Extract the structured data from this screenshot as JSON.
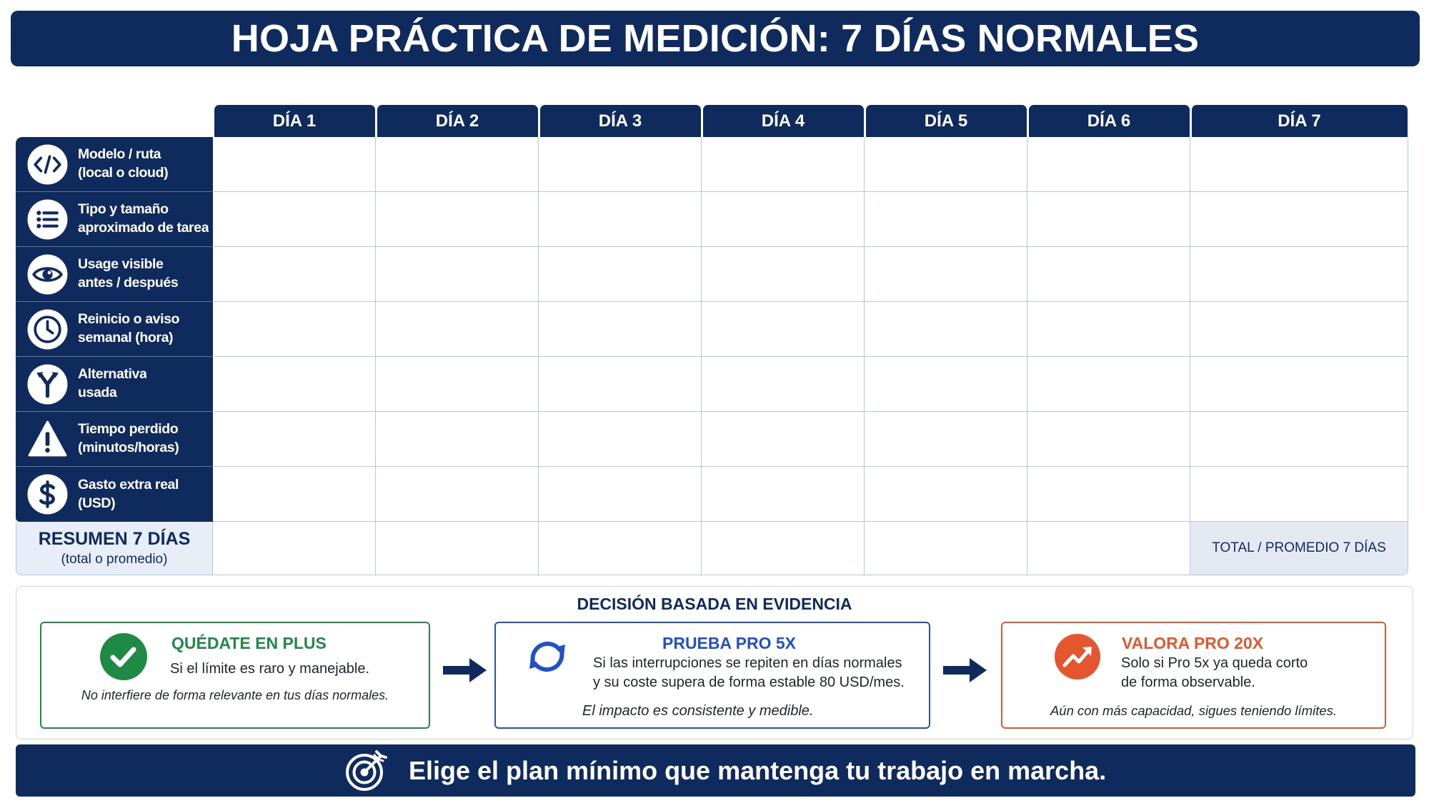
{
  "title": "HOJA PRÁCTICA DE MEDICIÓN: 7 DÍAS NORMALES",
  "colors": {
    "navy": "#0f2a5c",
    "green": "#1f8a45",
    "blue": "#1f52c9",
    "orange": "#e4572e",
    "grid": "#b9c5d8"
  },
  "table": {
    "days": [
      "DÍA 1",
      "DÍA 2",
      "DÍA 3",
      "DÍA 4",
      "DÍA 5",
      "DÍA 6",
      "DÍA 7"
    ],
    "rows": [
      {
        "icon": "code-icon",
        "lines": [
          "Modelo / ruta",
          "(local o cloud)"
        ]
      },
      {
        "icon": "list-icon",
        "lines": [
          "Tipo y tamaño",
          "aproximado de tarea"
        ]
      },
      {
        "icon": "eye-icon",
        "lines": [
          "Usage visible",
          "antes / después"
        ]
      },
      {
        "icon": "clock-icon",
        "lines": [
          "Reinicio o aviso",
          "semanal (hora)"
        ]
      },
      {
        "icon": "fork-icon",
        "lines": [
          "Alternativa",
          "usada"
        ]
      },
      {
        "icon": "warning-icon",
        "lines": [
          "Tiempo perdido",
          "(minutos/horas)"
        ]
      },
      {
        "icon": "dollar-icon",
        "lines": [
          "Gasto extra real",
          "(USD)"
        ]
      }
    ],
    "summary": {
      "title": "RESUMEN 7 DÍAS",
      "subtitle": "(total o promedio)",
      "total_label": "TOTAL / PROMEDIO 7 DÍAS"
    }
  },
  "decision": {
    "title": "DECISIÓN BASADA EN EVIDENCIA",
    "options": [
      {
        "icon": "check-circle-icon",
        "title": "QUÉDATE EN PLUS",
        "lines": [
          "Si el límite es raro y manejable."
        ],
        "note": "No interfiere de forma relevante en tus días normales."
      },
      {
        "icon": "refresh-icon",
        "title": "PRUEBA PRO 5X",
        "lines": [
          "Si las interrupciones se repiten en días normales",
          "y su coste supera de forma estable 80 USD/mes."
        ],
        "note": "El impacto es consistente y medible."
      },
      {
        "icon": "trending-up-icon",
        "title": "VALORA PRO 20X",
        "lines": [
          "Solo si Pro 5x ya queda corto",
          "de forma observable."
        ],
        "note": "Aún con más capacidad, sigues teniendo límites."
      }
    ]
  },
  "footer": {
    "icon": "target-icon",
    "text": "Elige el plan mínimo que mantenga tu trabajo en marcha."
  }
}
